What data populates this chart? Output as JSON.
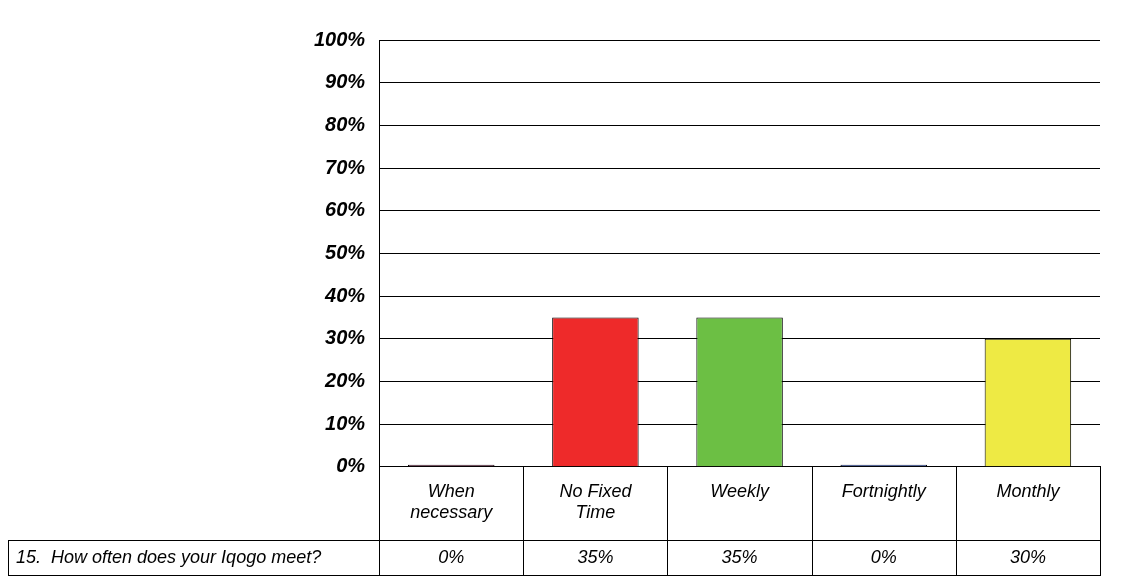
{
  "chart_data": {
    "type": "bar",
    "categories": [
      "When necessary",
      "No Fixed Time",
      "Weekly",
      "Fortnightly",
      "Monthly"
    ],
    "series": [
      {
        "name": "15.  How often does your Iqogo meet?",
        "colors": [
          "#6b2a47",
          "#ee2a2a",
          "#6cbf44",
          "#3050b0",
          "#eeea44"
        ],
        "values": [
          0,
          35,
          35,
          0,
          30
        ]
      }
    ],
    "ylim": [
      0,
      100
    ],
    "yticks": [
      {
        "value": 0,
        "label": "0%"
      },
      {
        "value": 10,
        "label": "10%"
      },
      {
        "value": 20,
        "label": "20%"
      },
      {
        "value": 30,
        "label": "30%"
      },
      {
        "value": 40,
        "label": "40%"
      },
      {
        "value": 50,
        "label": "50%"
      },
      {
        "value": 60,
        "label": "60%"
      },
      {
        "value": 70,
        "label": "70%"
      },
      {
        "value": 80,
        "label": "80%"
      },
      {
        "value": 90,
        "label": "90%"
      },
      {
        "value": 100,
        "label": "100%"
      }
    ],
    "value_labels": [
      "0%",
      "35%",
      "35%",
      "0%",
      "30%"
    ],
    "grid": "y",
    "legend": false
  }
}
